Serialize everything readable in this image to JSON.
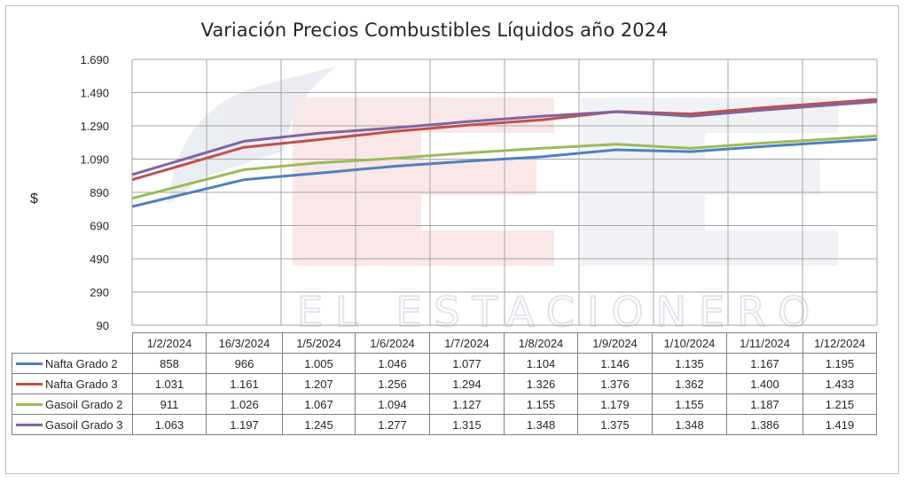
{
  "chart_data": {
    "type": "line",
    "title": "Variación Precios Combustibles Líquidos año 2024",
    "ylabel": "$",
    "xlabel": "",
    "ylim": [
      90,
      1690
    ],
    "yticks": [
      "1.690",
      "1.490",
      "1.290",
      "1.090",
      "890",
      "690",
      "490",
      "290",
      "90"
    ],
    "ytick_values": [
      1690,
      1490,
      1290,
      1090,
      890,
      690,
      490,
      290,
      90
    ],
    "categories": [
      "1/2/2024",
      "16/3/2024",
      "1/5/2024",
      "1/6/2024",
      "1/7/2024",
      "1/8/2024",
      "1/9/2024",
      "1/10/2024",
      "1/11/2024",
      "1/12/2024"
    ],
    "grid": true,
    "legend": "data-table",
    "watermark": "EL ESTACIONERO",
    "series": [
      {
        "name": "Nafta Grado 2",
        "color": "#4f81bd",
        "values": [
          858,
          966,
          1005,
          1046,
          1077,
          1104,
          1146,
          1135,
          1167,
          1195
        ],
        "labels": [
          "858",
          "966",
          "1.005",
          "1.046",
          "1.077",
          "1.104",
          "1.146",
          "1.135",
          "1.167",
          "1.195"
        ]
      },
      {
        "name": "Nafta Grado 3",
        "color": "#c0504d",
        "values": [
          1031,
          1161,
          1207,
          1256,
          1294,
          1326,
          1376,
          1362,
          1400,
          1433
        ],
        "labels": [
          "1.031",
          "1.161",
          "1.207",
          "1.256",
          "1.294",
          "1.326",
          "1.376",
          "1.362",
          "1.400",
          "1.433"
        ]
      },
      {
        "name": "Gasoil Grado 2",
        "color": "#9bbb59",
        "values": [
          911,
          1026,
          1067,
          1094,
          1127,
          1155,
          1179,
          1155,
          1187,
          1215
        ],
        "labels": [
          "911",
          "1.026",
          "1.067",
          "1.094",
          "1.127",
          "1.155",
          "1.179",
          "1.155",
          "1.187",
          "1.215"
        ]
      },
      {
        "name": "Gasoil Grado 3",
        "color": "#8064a2",
        "values": [
          1063,
          1197,
          1245,
          1277,
          1315,
          1348,
          1375,
          1348,
          1386,
          1419
        ],
        "labels": [
          "1.063",
          "1.197",
          "1.245",
          "1.277",
          "1.315",
          "1.348",
          "1.375",
          "1.348",
          "1.386",
          "1.419"
        ]
      }
    ]
  }
}
